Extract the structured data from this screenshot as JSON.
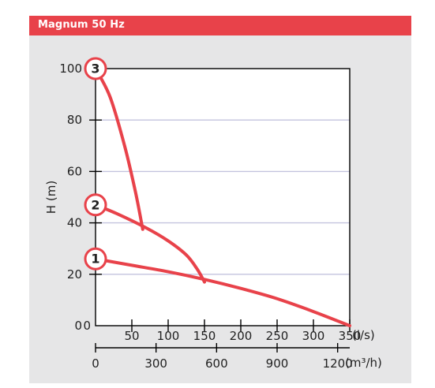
{
  "header": {
    "title": "Magnum 50 Hz"
  },
  "colors": {
    "header_bg": "#e8424a",
    "panel_bg": "#e6e6e7",
    "plot_bg": "#ffffff",
    "gridline": "#c3c3de",
    "curve": "#e8424a",
    "axis": "#000000"
  },
  "chart_data": {
    "type": "line",
    "title": "",
    "ylabel": "H (m)",
    "xlabel_primary_unit": "(l/s)",
    "xlabel_secondary_unit": "(m³/h)",
    "xlim": [
      0,
      350
    ],
    "ylim": [
      0,
      100
    ],
    "grid": "horizontal",
    "y_ticks": [
      0,
      20,
      40,
      60,
      80,
      100
    ],
    "x_ticks": [
      50,
      100,
      150,
      200,
      250,
      300,
      350
    ],
    "x_ticks_secondary": [
      {
        "value": 0,
        "ls": 0
      },
      {
        "value": 300,
        "ls": 83.33
      },
      {
        "value": 600,
        "ls": 166.67
      },
      {
        "value": 900,
        "ls": 250
      },
      {
        "value": 1200,
        "ls": 333.33
      }
    ],
    "series": [
      {
        "label": "1",
        "points": [
          [
            0,
            26
          ],
          [
            50,
            23.5
          ],
          [
            100,
            21
          ],
          [
            150,
            18
          ],
          [
            200,
            14.5
          ],
          [
            250,
            10.5
          ],
          [
            300,
            5.5
          ],
          [
            350,
            0
          ]
        ]
      },
      {
        "label": "2",
        "points": [
          [
            0,
            47
          ],
          [
            30,
            43.5
          ],
          [
            70,
            38
          ],
          [
            100,
            33
          ],
          [
            125,
            27.5
          ],
          [
            140,
            22
          ],
          [
            150,
            17
          ]
        ]
      },
      {
        "label": "3",
        "points": [
          [
            0,
            100
          ],
          [
            20,
            89
          ],
          [
            40,
            70
          ],
          [
            55,
            52
          ],
          [
            65,
            37.5
          ]
        ]
      }
    ]
  }
}
